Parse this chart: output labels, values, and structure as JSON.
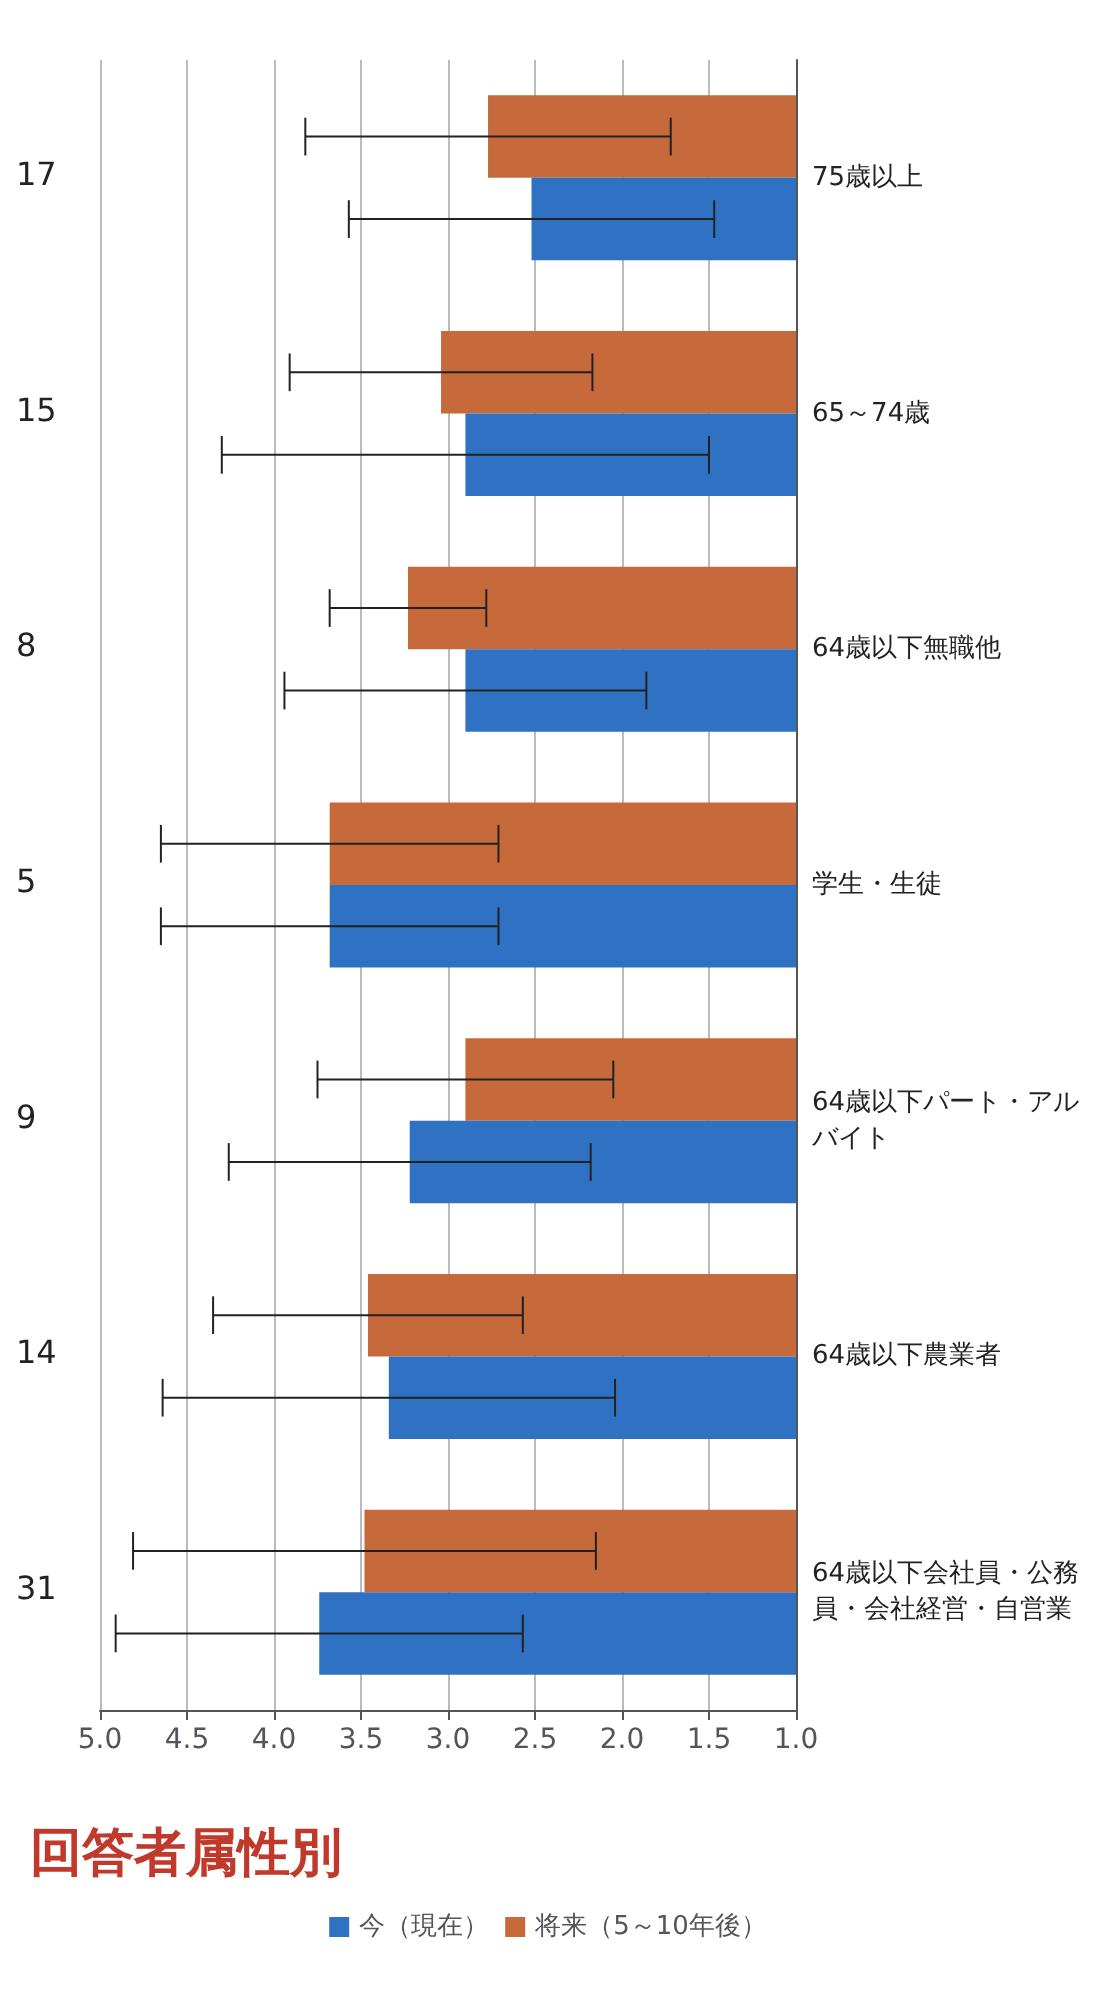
{
  "chart_data": {
    "type": "bar",
    "orientation": "horizontal",
    "title": "回答者属性別",
    "categories": [
      "75歳以上",
      "65～74歳",
      "64歳以下無職他",
      "学生・生徒",
      "64歳以下パート・アルバイト",
      "64歳以下農業者",
      "64歳以下会社員・公務員・会社経営・自営業"
    ],
    "series": [
      {
        "name": "今（現在）",
        "color": "#2f72c4",
        "values": [
          2.52,
          2.9,
          2.9,
          3.68,
          3.22,
          3.34,
          3.74
        ],
        "errors": [
          1.05,
          1.4,
          1.04,
          0.97,
          1.04,
          1.3,
          1.17
        ]
      },
      {
        "name": "将来（5～10年後）",
        "color": "#c66a3c",
        "values": [
          2.77,
          3.04,
          3.23,
          3.68,
          2.9,
          3.46,
          3.48
        ],
        "errors": [
          1.05,
          0.87,
          0.45,
          0.97,
          0.85,
          0.89,
          1.33
        ]
      }
    ],
    "xlim": [
      5,
      1
    ],
    "xticks": [
      {
        "value": 5,
        "label": "5.0"
      },
      {
        "value": 4.5,
        "label": "4.5"
      },
      {
        "value": 4,
        "label": "4.0"
      },
      {
        "value": 3.5,
        "label": "3.5"
      },
      {
        "value": 3,
        "label": "3.0"
      },
      {
        "value": 2.5,
        "label": "2.5"
      },
      {
        "value": 2,
        "label": "2.0"
      },
      {
        "value": 1.5,
        "label": "1.5"
      },
      {
        "value": 1,
        "label": "1.0"
      }
    ],
    "annotations": [
      "17",
      "15",
      "8",
      "5",
      "9",
      "14",
      "31"
    ],
    "grid": "x",
    "legend": "bottom"
  }
}
